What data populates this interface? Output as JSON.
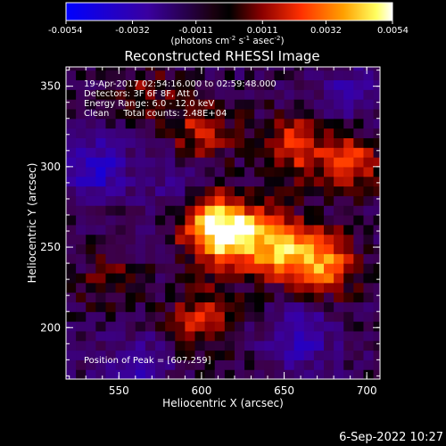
{
  "colorbar": {
    "ticks": [
      "-0.0054",
      "-0.0032",
      "-0.0011",
      "0.0011",
      "0.0032",
      "0.0054"
    ],
    "tick_values": [
      -0.0054,
      -0.0032,
      -0.0011,
      0.0011,
      0.0032,
      0.0054
    ],
    "unit_base": "(photons cm",
    "unit_sup1": "-2",
    "unit_mid": " s",
    "unit_sup2": "-1",
    "unit_mid2": " asec",
    "unit_sup3": "-2",
    "unit_end": ")"
  },
  "annotation": {
    "time": "19-Apr-2017 02:54:16.000 to 02:59:48.000",
    "detectors": "Detectors: 3F 6F 8F, Att 0",
    "energy": "Energy Range: 6.0 - 12.0 keV",
    "clean": "Clean     Total counts: 2.48E+04",
    "peak": "Position of Peak = [607,259]"
  },
  "footer_date": "6-Sep-2022 10:27",
  "chart_data": {
    "type": "heatmap",
    "title": "Reconstructed RHESSI Image",
    "xlabel": "Heliocentric X (arcsec)",
    "ylabel": "Heliocentric Y (arcsec)",
    "xlim": [
      518,
      708
    ],
    "ylim": [
      168,
      362
    ],
    "x_ticks": [
      550,
      600,
      650,
      700
    ],
    "y_ticks": [
      200,
      250,
      300,
      350
    ],
    "clim": [
      -0.0054,
      0.0054
    ],
    "peak_position": [
      607,
      259
    ],
    "colormap": [
      "#0000ff",
      "#000000",
      "#8b0000",
      "#ff4500",
      "#ffa500",
      "#ffff66",
      "#ffffff"
    ],
    "sources": [
      {
        "x": 607,
        "y": 262,
        "amplitude": 0.0052
      },
      {
        "x": 650,
        "y": 248,
        "amplitude": 0.0042
      },
      {
        "x": 675,
        "y": 240,
        "amplitude": 0.0038
      },
      {
        "x": 625,
        "y": 258,
        "amplitude": 0.0036
      },
      {
        "x": 655,
        "y": 313,
        "amplitude": 0.0028
      },
      {
        "x": 690,
        "y": 305,
        "amplitude": 0.003
      },
      {
        "x": 600,
        "y": 322,
        "amplitude": 0.0024
      },
      {
        "x": 565,
        "y": 345,
        "amplitude": 0.0016
      },
      {
        "x": 600,
        "y": 205,
        "amplitude": 0.0026
      },
      {
        "x": 545,
        "y": 228,
        "amplitude": 0.0014
      },
      {
        "x": 535,
        "y": 300,
        "amplitude": -0.0028
      },
      {
        "x": 560,
        "y": 175,
        "amplitude": -0.002
      },
      {
        "x": 690,
        "y": 345,
        "amplitude": -0.0018
      },
      {
        "x": 660,
        "y": 195,
        "amplitude": -0.0024
      },
      {
        "x": 585,
        "y": 288,
        "amplitude": -0.0012
      }
    ]
  }
}
